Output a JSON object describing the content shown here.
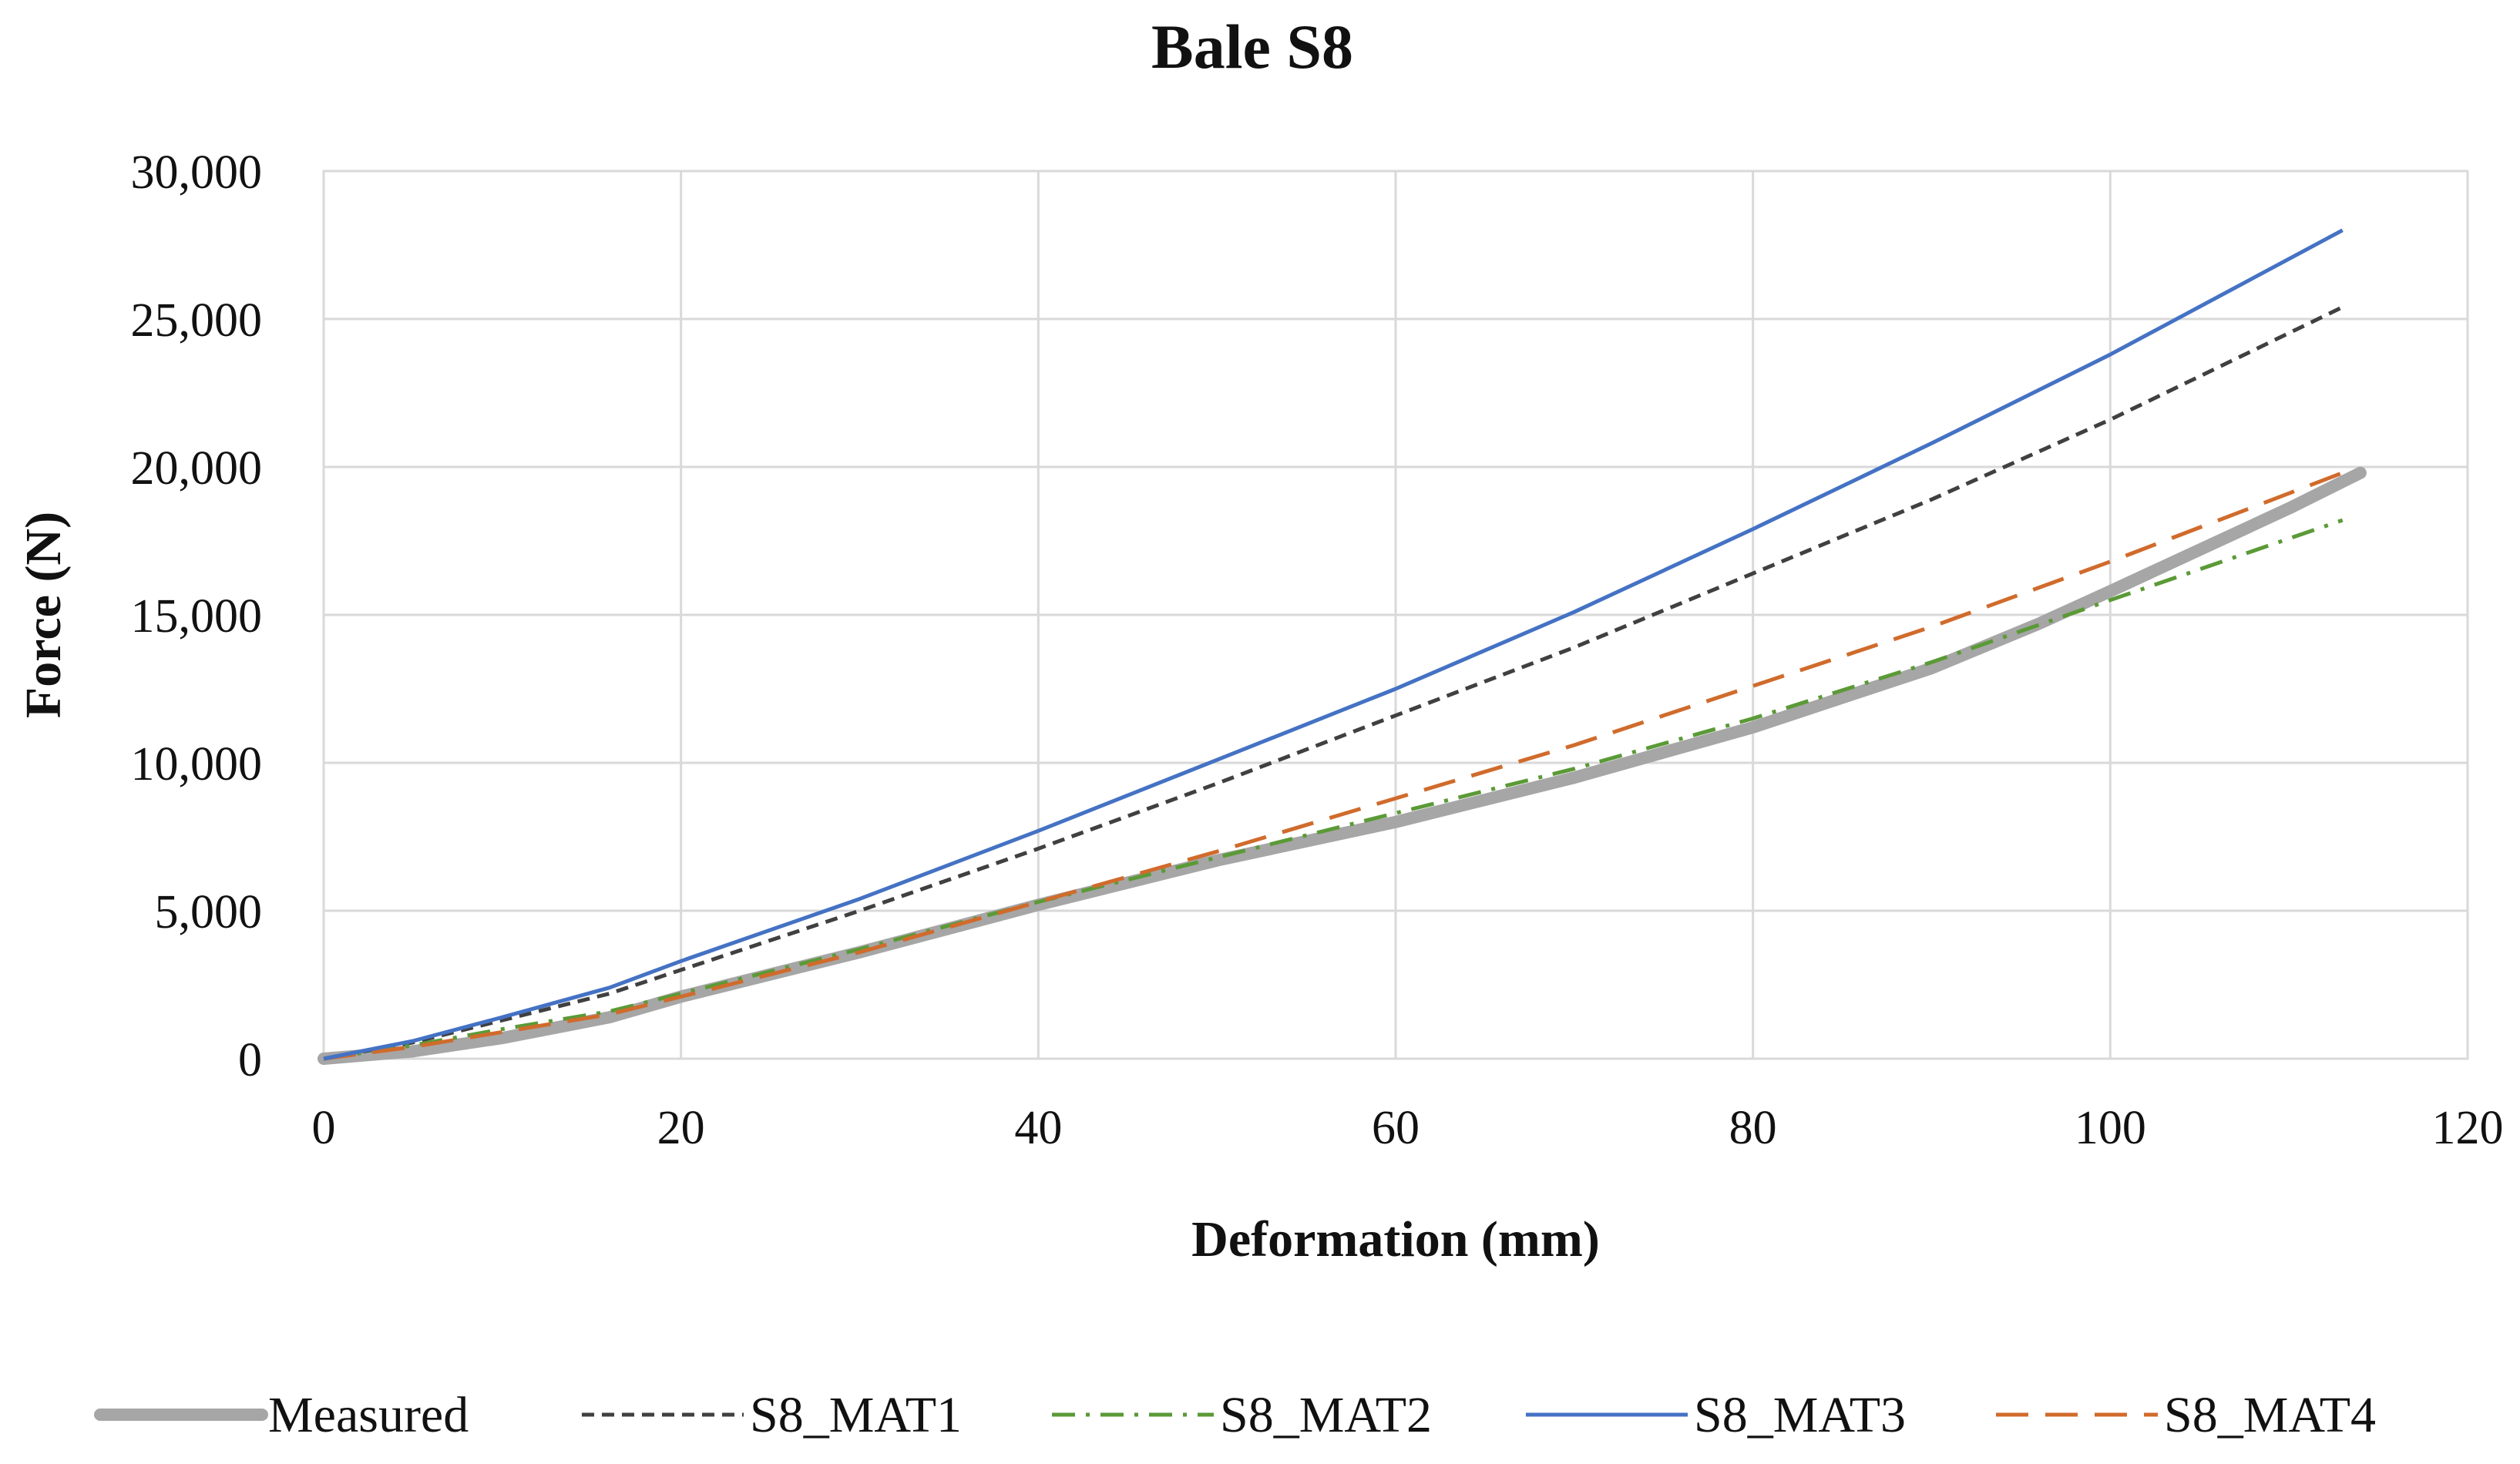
{
  "chart_data": {
    "type": "line",
    "title": "Bale S8",
    "xlabel": "Deformation (mm)",
    "ylabel": "Force (N)",
    "xlim": [
      0,
      120
    ],
    "ylim": [
      0,
      30000
    ],
    "x_ticks": [
      0,
      20,
      40,
      60,
      80,
      100,
      120
    ],
    "y_ticks": [
      0,
      5000,
      10000,
      15000,
      20000,
      25000,
      30000
    ],
    "x_tick_labels": [
      "0",
      "20",
      "40",
      "60",
      "80",
      "100",
      "120"
    ],
    "y_tick_labels": [
      "0",
      "5,000",
      "10,000",
      "15,000",
      "20,000",
      "25,000",
      "30,000"
    ],
    "grid": true,
    "legend_position": "bottom",
    "series": [
      {
        "name": "Measured",
        "color": "#a6a6a6",
        "dash": "solid",
        "width": "thick",
        "points": [
          [
            0,
            0
          ],
          [
            5,
            250
          ],
          [
            10,
            700
          ],
          [
            16,
            1400
          ],
          [
            20,
            2100
          ],
          [
            30,
            3600
          ],
          [
            40,
            5200
          ],
          [
            50,
            6700
          ],
          [
            60,
            8000
          ],
          [
            70,
            9500
          ],
          [
            80,
            11200
          ],
          [
            90,
            13200
          ],
          [
            96,
            14700
          ],
          [
            100,
            15800
          ],
          [
            105,
            17200
          ],
          [
            110,
            18600
          ],
          [
            114,
            19800
          ]
        ]
      },
      {
        "name": "S8_MAT1",
        "color": "#404040",
        "dash": "short-dash",
        "width": "normal",
        "points": [
          [
            0,
            0
          ],
          [
            5,
            550
          ],
          [
            10,
            1300
          ],
          [
            16,
            2200
          ],
          [
            20,
            3000
          ],
          [
            30,
            5000
          ],
          [
            40,
            7100
          ],
          [
            50,
            9300
          ],
          [
            60,
            11600
          ],
          [
            70,
            13900
          ],
          [
            80,
            16400
          ],
          [
            90,
            18900
          ],
          [
            100,
            21600
          ],
          [
            113,
            25400
          ]
        ]
      },
      {
        "name": "S8_MAT2",
        "color": "#5b9a37",
        "dash": "dash-dot",
        "width": "normal",
        "points": [
          [
            0,
            0
          ],
          [
            5,
            450
          ],
          [
            10,
            1000
          ],
          [
            16,
            1600
          ],
          [
            20,
            2200
          ],
          [
            30,
            3700
          ],
          [
            40,
            5300
          ],
          [
            50,
            6800
          ],
          [
            60,
            8300
          ],
          [
            70,
            9800
          ],
          [
            80,
            11500
          ],
          [
            90,
            13400
          ],
          [
            100,
            15500
          ],
          [
            113,
            18200
          ]
        ]
      },
      {
        "name": "S8_MAT3",
        "color": "#4472c4",
        "dash": "solid",
        "width": "normal",
        "points": [
          [
            0,
            0
          ],
          [
            5,
            600
          ],
          [
            10,
            1400
          ],
          [
            16,
            2400
          ],
          [
            20,
            3300
          ],
          [
            30,
            5400
          ],
          [
            40,
            7700
          ],
          [
            50,
            10100
          ],
          [
            60,
            12500
          ],
          [
            70,
            15100
          ],
          [
            80,
            17900
          ],
          [
            90,
            20800
          ],
          [
            100,
            23800
          ],
          [
            113,
            28000
          ]
        ]
      },
      {
        "name": "S8_MAT4",
        "color": "#d06b2c",
        "dash": "long-dash",
        "width": "normal",
        "points": [
          [
            0,
            0
          ],
          [
            5,
            400
          ],
          [
            10,
            900
          ],
          [
            16,
            1500
          ],
          [
            20,
            2100
          ],
          [
            30,
            3600
          ],
          [
            40,
            5300
          ],
          [
            50,
            7000
          ],
          [
            60,
            8800
          ],
          [
            70,
            10600
          ],
          [
            80,
            12600
          ],
          [
            90,
            14600
          ],
          [
            100,
            16800
          ],
          [
            113,
            19800
          ]
        ]
      }
    ]
  }
}
